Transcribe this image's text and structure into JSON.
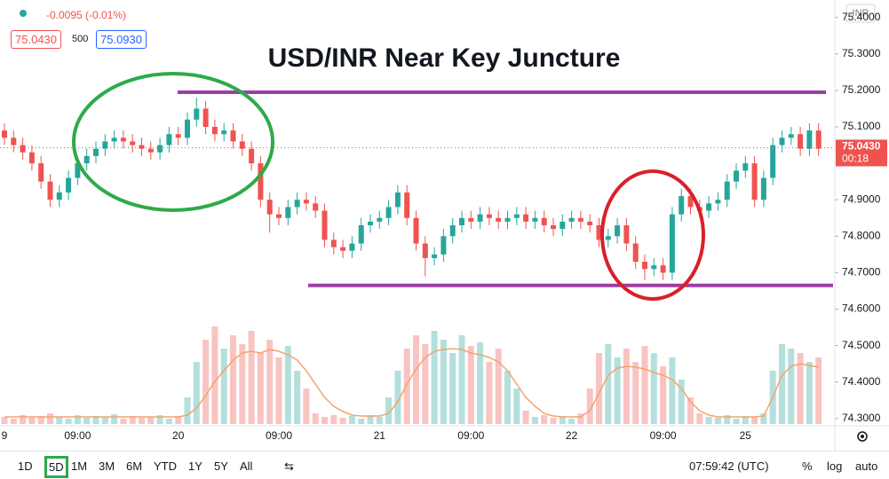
{
  "header": {
    "change": "-0.0095 (-0.01%)",
    "bid": "75.0430",
    "quantity": "500",
    "ask": "75.0930"
  },
  "chart_data": {
    "type": "candlestick",
    "title": "USD/INR Near Key Juncture",
    "currency": "INR",
    "categories": [
      "9",
      null,
      null,
      null,
      null,
      null,
      null,
      null,
      "09:00",
      null,
      null,
      null,
      null,
      null,
      null,
      null,
      null,
      null,
      null,
      "20",
      null,
      null,
      null,
      null,
      null,
      null,
      null,
      null,
      null,
      null,
      "09:00",
      null,
      null,
      null,
      null,
      null,
      null,
      null,
      null,
      null,
      null,
      "21",
      null,
      null,
      null,
      null,
      null,
      null,
      null,
      null,
      null,
      "09:00",
      null,
      null,
      null,
      null,
      null,
      null,
      null,
      null,
      null,
      null,
      "22",
      null,
      null,
      null,
      null,
      null,
      null,
      null,
      null,
      null,
      "09:00",
      null,
      null,
      null,
      null,
      null,
      null,
      null,
      null,
      "25",
      null,
      null,
      null,
      null,
      null,
      null,
      null,
      null
    ],
    "open": [
      75.09,
      75.07,
      75.05,
      75.03,
      75.0,
      74.95,
      74.9,
      74.92,
      74.96,
      75.0,
      75.02,
      75.04,
      75.06,
      75.07,
      75.06,
      75.05,
      75.04,
      75.03,
      75.05,
      75.08,
      75.07,
      75.12,
      75.15,
      75.1,
      75.08,
      75.09,
      75.06,
      75.04,
      75.0,
      74.9,
      74.86,
      74.85,
      74.88,
      74.9,
      74.89,
      74.87,
      74.79,
      74.77,
      74.76,
      74.78,
      74.83,
      74.84,
      74.85,
      74.88,
      74.92,
      74.85,
      74.78,
      74.74,
      74.75,
      74.8,
      74.83,
      74.85,
      74.84,
      74.86,
      74.85,
      74.84,
      74.85,
      74.86,
      74.84,
      74.85,
      74.83,
      74.82,
      74.84,
      74.85,
      74.84,
      74.83,
      74.79,
      74.8,
      74.83,
      74.78,
      74.73,
      74.71,
      74.72,
      74.7,
      74.86,
      74.91,
      74.88,
      74.87,
      74.89,
      74.9,
      74.95,
      74.98,
      75.0,
      74.9,
      74.96,
      75.05,
      75.07,
      75.08,
      75.04,
      75.09
    ],
    "high": [
      75.11,
      75.09,
      75.07,
      75.05,
      75.02,
      74.97,
      74.94,
      74.98,
      75.02,
      75.04,
      75.06,
      75.08,
      75.09,
      75.09,
      75.08,
      75.07,
      75.06,
      75.07,
      75.1,
      75.1,
      75.14,
      75.18,
      75.17,
      75.12,
      75.11,
      75.11,
      75.08,
      75.06,
      75.02,
      74.92,
      74.88,
      74.9,
      74.92,
      74.92,
      74.91,
      74.89,
      74.81,
      74.79,
      74.8,
      74.85,
      74.86,
      74.87,
      74.9,
      74.94,
      74.94,
      74.87,
      74.8,
      74.77,
      74.82,
      74.85,
      74.87,
      74.87,
      74.88,
      74.88,
      74.87,
      74.87,
      74.88,
      74.88,
      74.87,
      74.87,
      74.85,
      74.86,
      74.87,
      74.87,
      74.86,
      74.85,
      74.82,
      74.85,
      74.85,
      74.8,
      74.75,
      74.74,
      74.74,
      74.88,
      74.93,
      74.93,
      74.9,
      74.91,
      74.92,
      74.97,
      75.0,
      75.02,
      75.02,
      74.98,
      75.07,
      75.09,
      75.1,
      75.1,
      75.11,
      75.11
    ],
    "low": [
      75.05,
      75.03,
      75.01,
      74.98,
      74.93,
      74.88,
      74.88,
      74.9,
      74.94,
      74.98,
      75.0,
      75.02,
      75.04,
      75.04,
      75.03,
      75.02,
      75.01,
      75.01,
      75.03,
      75.05,
      75.05,
      75.1,
      75.08,
      75.06,
      75.06,
      75.04,
      75.02,
      74.98,
      74.88,
      74.81,
      74.83,
      74.83,
      74.86,
      74.87,
      74.85,
      74.77,
      74.75,
      74.74,
      74.74,
      74.76,
      74.81,
      74.82,
      74.83,
      74.86,
      74.83,
      74.76,
      74.69,
      74.72,
      74.73,
      74.78,
      74.81,
      74.82,
      74.82,
      74.83,
      74.82,
      74.82,
      74.83,
      74.82,
      74.82,
      74.81,
      74.8,
      74.8,
      74.82,
      74.82,
      74.81,
      74.77,
      74.77,
      74.78,
      74.76,
      74.71,
      74.68,
      74.69,
      74.68,
      74.68,
      74.84,
      74.86,
      74.85,
      74.85,
      74.87,
      74.88,
      74.93,
      74.96,
      74.88,
      74.88,
      74.94,
      75.03,
      75.05,
      75.02,
      75.02,
      75.02
    ],
    "close": [
      75.07,
      75.05,
      75.03,
      75.0,
      74.95,
      74.9,
      74.92,
      74.96,
      75.0,
      75.02,
      75.04,
      75.06,
      75.07,
      75.06,
      75.05,
      75.04,
      75.03,
      75.05,
      75.08,
      75.07,
      75.12,
      75.15,
      75.1,
      75.08,
      75.09,
      75.06,
      75.04,
      75.0,
      74.9,
      74.86,
      74.85,
      74.88,
      74.9,
      74.89,
      74.87,
      74.79,
      74.77,
      74.76,
      74.78,
      74.83,
      74.84,
      74.85,
      74.88,
      74.92,
      74.85,
      74.78,
      74.74,
      74.75,
      74.8,
      74.83,
      74.85,
      74.84,
      74.86,
      74.85,
      74.84,
      74.85,
      74.86,
      74.84,
      74.85,
      74.83,
      74.82,
      74.84,
      74.85,
      74.84,
      74.83,
      74.79,
      74.8,
      74.83,
      74.78,
      74.73,
      74.71,
      74.72,
      74.7,
      74.86,
      74.91,
      74.88,
      74.87,
      74.89,
      74.9,
      74.95,
      74.98,
      75.0,
      74.9,
      74.96,
      75.05,
      75.07,
      75.08,
      75.04,
      75.09,
      75.04
    ],
    "volume": [
      8,
      6,
      10,
      7,
      9,
      12,
      8,
      6,
      10,
      7,
      9,
      8,
      11,
      6,
      9,
      7,
      8,
      10,
      6,
      9,
      30,
      70,
      95,
      110,
      85,
      100,
      90,
      105,
      80,
      95,
      75,
      88,
      60,
      40,
      12,
      8,
      10,
      7,
      9,
      6,
      10,
      8,
      30,
      60,
      85,
      100,
      90,
      105,
      95,
      80,
      100,
      88,
      92,
      70,
      85,
      60,
      40,
      15,
      8,
      10,
      7,
      9,
      6,
      12,
      40,
      80,
      90,
      75,
      85,
      70,
      88,
      80,
      65,
      75,
      50,
      30,
      12,
      8,
      7,
      10,
      6,
      9,
      8,
      12,
      60,
      90,
      85,
      80,
      70,
      75
    ],
    "volume_ma": [
      8,
      8,
      8,
      8,
      8,
      8,
      8,
      8,
      8,
      8,
      8,
      8,
      8,
      8,
      8,
      8,
      8,
      8,
      8,
      8,
      10,
      18,
      32,
      48,
      60,
      72,
      80,
      82,
      80,
      84,
      82,
      78,
      72,
      60,
      45,
      30,
      20,
      14,
      10,
      9,
      9,
      9,
      12,
      25,
      45,
      62,
      75,
      82,
      84,
      85,
      84,
      80,
      78,
      75,
      70,
      60,
      45,
      30,
      20,
      12,
      9,
      8,
      8,
      8,
      15,
      35,
      55,
      63,
      65,
      64,
      62,
      58,
      55,
      50,
      40,
      25,
      15,
      10,
      8,
      8,
      8,
      8,
      8,
      9,
      30,
      55,
      65,
      68,
      66,
      64
    ],
    "volume_lim": [
      0,
      120
    ],
    "ylim": [
      74.28,
      75.448
    ],
    "yticks": [
      {
        "value": 75.4,
        "label": "75.4000"
      },
      {
        "value": 75.3,
        "label": "75.3000"
      },
      {
        "value": 75.2,
        "label": "75.2000"
      },
      {
        "value": 75.1,
        "label": "75.1000"
      },
      {
        "value": 74.9,
        "label": "74.9000"
      },
      {
        "value": 74.8,
        "label": "74.8000"
      },
      {
        "value": 74.7,
        "label": "74.7000"
      },
      {
        "value": 74.6,
        "label": "74.6000"
      },
      {
        "value": 74.5,
        "label": "74.5000"
      },
      {
        "value": 74.4,
        "label": "74.4000"
      },
      {
        "value": 74.3,
        "label": "74.3000"
      }
    ],
    "last_price": {
      "value": 75.043,
      "label": "75.0430"
    },
    "countdown": "00:18",
    "levels": [
      75.195,
      74.665
    ],
    "up_color": "#26a69a",
    "down_color": "#ef5350",
    "ma_color": "#f5a36c",
    "level_color": "#9c3fa3"
  },
  "toolbar": {
    "ranges": [
      "1D",
      "5D",
      "1M",
      "3M",
      "6M",
      "YTD",
      "1Y",
      "5Y",
      "All"
    ],
    "active_range": 1,
    "time": "07:59:42 (UTC)",
    "options": [
      "%",
      "log",
      "auto"
    ]
  }
}
